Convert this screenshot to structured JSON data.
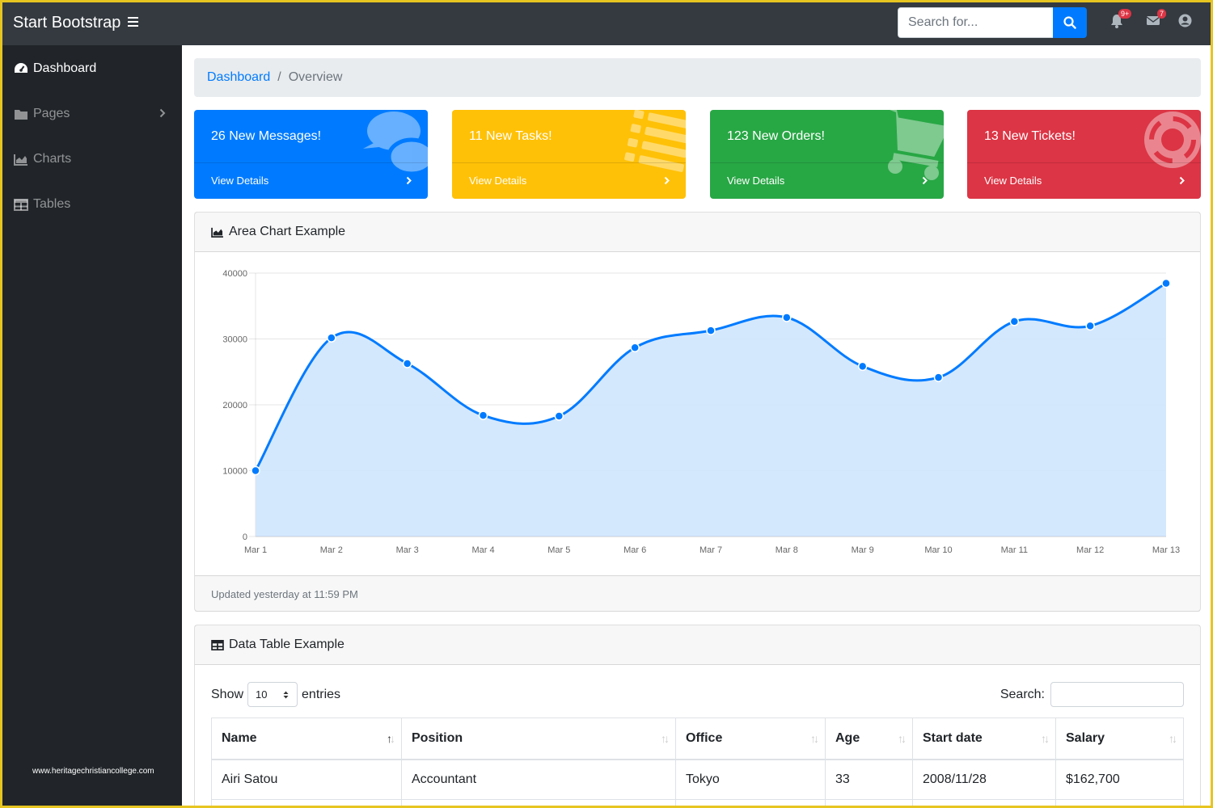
{
  "navbar": {
    "brand": "Start Bootstrap",
    "search_placeholder": "Search for...",
    "alerts_badge": "9+",
    "messages_badge": "7"
  },
  "sidebar": {
    "items": [
      {
        "label": "Dashboard",
        "icon": "tachometer-icon",
        "active": true
      },
      {
        "label": "Pages",
        "icon": "folder-icon"
      },
      {
        "label": "Charts",
        "icon": "area-chart-icon"
      },
      {
        "label": "Tables",
        "icon": "table-icon"
      }
    ],
    "watermark": "www.heritagechristiancollege.com"
  },
  "breadcrumb": {
    "link": "Dashboard",
    "current": "Overview"
  },
  "stat_cards": [
    {
      "title": "26 New Messages!",
      "link": "View Details",
      "color": "#007bff",
      "icon": "comments-icon"
    },
    {
      "title": "11 New Tasks!",
      "link": "View Details",
      "color": "#ffc107",
      "icon": "list-icon"
    },
    {
      "title": "123 New Orders!",
      "link": "View Details",
      "color": "#28a745",
      "icon": "shopping-cart-icon"
    },
    {
      "title": "13 New Tickets!",
      "link": "View Details",
      "color": "#dc3545",
      "icon": "life-ring-icon"
    }
  ],
  "area_card": {
    "title": "Area Chart Example",
    "footer": "Updated yesterday at 11:59 PM"
  },
  "chart_data": {
    "type": "area",
    "categories": [
      "Mar 1",
      "Mar 2",
      "Mar 3",
      "Mar 4",
      "Mar 5",
      "Mar 6",
      "Mar 7",
      "Mar 8",
      "Mar 9",
      "Mar 10",
      "Mar 11",
      "Mar 12",
      "Mar 13"
    ],
    "values": [
      10000,
      30162,
      26263,
      18394,
      18287,
      28682,
      31274,
      33259,
      25849,
      24159,
      32651,
      31984,
      38451
    ],
    "ylim": [
      0,
      40000
    ],
    "yticks": [
      "0",
      "10000",
      "20000",
      "30000",
      "40000"
    ],
    "grid": true,
    "line_color": "#007bff",
    "fill_color": "#cfe6fd"
  },
  "table_card": {
    "title": "Data Table Example",
    "show_label": "Show",
    "entries_value": "10",
    "entries_label": "entries",
    "search_label": "Search:",
    "columns": [
      "Name",
      "Position",
      "Office",
      "Age",
      "Start date",
      "Salary"
    ],
    "rows": [
      [
        "Airi Satou",
        "Accountant",
        "Tokyo",
        "33",
        "2008/11/28",
        "$162,700"
      ]
    ]
  }
}
